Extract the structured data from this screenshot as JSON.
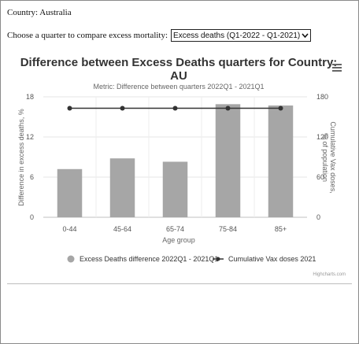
{
  "page": {
    "country_line": "Country: Australia",
    "quarter_prompt": "Choose a quarter to compare excess mortality:",
    "quarter_selected": "Excess deaths (Q1-2022 - Q1-2021)",
    "menu_icon": "hamburger-menu-icon",
    "chevron_icon": "chevron-down-icon"
  },
  "chart_data": {
    "type": "bar",
    "title": "Difference between Excess Deaths quarters for Country: AU",
    "subtitle": "Metric: Difference between quarters 2022Q1 - 2021Q1",
    "xlabel": "Age group",
    "ylabel": "Difference in excess deaths, %",
    "y2label": "Cumulative Vax doses, % of population",
    "categories": [
      "0-44",
      "45-64",
      "65-74",
      "75-84",
      "85+"
    ],
    "ylim": [
      0,
      18
    ],
    "yticks": [
      "0",
      "6",
      "12",
      "18"
    ],
    "y2lim": [
      0,
      180
    ],
    "y2ticks": [
      "0",
      "60",
      "120",
      "180"
    ],
    "series": [
      {
        "name": "Excess Deaths difference 2022Q1 - 2021Q1",
        "type": "bar",
        "axis": "left",
        "color": "#a6a6a6",
        "values": [
          7.2,
          8.8,
          8.3,
          16.9,
          16.7
        ]
      },
      {
        "name": "Cumulative Vax doses 2021",
        "type": "line",
        "axis": "right",
        "color": "#333333",
        "values": [
          163,
          163,
          163,
          163,
          163
        ]
      }
    ],
    "grid": true,
    "legend": "bottom-center",
    "credits": "Highcharts.com"
  }
}
